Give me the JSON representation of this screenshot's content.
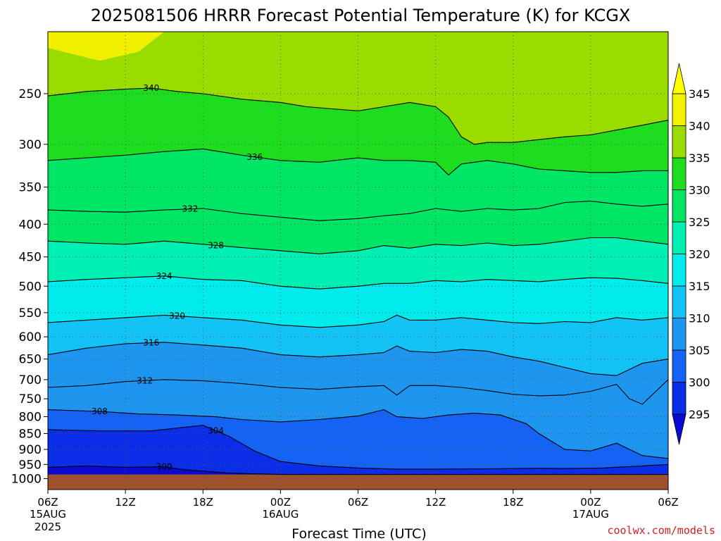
{
  "chart_data": {
    "type": "heatmap",
    "title": "2025081506 HRRR Forecast Potential Temperature (K) for KCGX",
    "xlabel": "Forecast Time (UTC)",
    "ylabel": "",
    "x_ticks": [
      {
        "hour": 0,
        "label": "06Z",
        "sub": "15AUG",
        "sub2": "2025"
      },
      {
        "hour": 6,
        "label": "12Z"
      },
      {
        "hour": 12,
        "label": "18Z"
      },
      {
        "hour": 18,
        "label": "00Z",
        "sub": "16AUG"
      },
      {
        "hour": 24,
        "label": "06Z"
      },
      {
        "hour": 30,
        "label": "12Z"
      },
      {
        "hour": 36,
        "label": "18Z"
      },
      {
        "hour": 42,
        "label": "00Z",
        "sub": "17AUG"
      },
      {
        "hour": 48,
        "label": "06Z"
      }
    ],
    "xlim": [
      0,
      48
    ],
    "y_ticks": [
      {
        "p": 250,
        "label": "250"
      },
      {
        "p": 300,
        "label": "300"
      },
      {
        "p": 350,
        "label": "350"
      },
      {
        "p": 400,
        "label": "400"
      },
      {
        "p": 450,
        "label": "450"
      },
      {
        "p": 500,
        "label": "500"
      },
      {
        "p": 550,
        "label": "550"
      },
      {
        "p": 600,
        "label": "600"
      },
      {
        "p": 650,
        "label": "650"
      },
      {
        "p": 700,
        "label": "700"
      },
      {
        "p": 750,
        "label": "750"
      },
      {
        "p": 800,
        "label": "800"
      },
      {
        "p": 850,
        "label": "850"
      },
      {
        "p": 900,
        "label": "900"
      },
      {
        "p": 950,
        "label": "950"
      },
      {
        "p": 1000,
        "label": "1000"
      }
    ],
    "ylim_hPa": [
      200,
      1040
    ],
    "y_scale": "log",
    "grid": true,
    "legend": {
      "placement": "right",
      "levels": [
        295,
        300,
        305,
        310,
        315,
        320,
        325,
        330,
        335,
        340,
        345
      ],
      "labels": [
        "295",
        "300",
        "305",
        "310",
        "315",
        "320",
        "325",
        "330",
        "335",
        "340",
        "345"
      ],
      "colors": [
        "#0a0ad2",
        "#0a2ee8",
        "#1463f5",
        "#1e96f0",
        "#14c3f5",
        "#00ebeb",
        "#00f0b4",
        "#00e664",
        "#1edc1e",
        "#9bdc00",
        "#f0f000",
        "#ffff00"
      ],
      "extend": "both"
    },
    "ground": {
      "p": 985,
      "color": "#a0522d"
    },
    "contours": [
      {
        "level": 300,
        "label": "300",
        "points": [
          [
            0,
            960
          ],
          [
            3,
            955
          ],
          [
            6,
            960
          ],
          [
            9,
            958
          ],
          [
            10.5,
            968
          ],
          [
            14,
            980
          ],
          [
            18,
            985
          ],
          [
            30,
            985
          ],
          [
            48,
            985
          ]
        ],
        "label_at": 9
      },
      {
        "level": 304,
        "label": "304",
        "points": [
          [
            0,
            838
          ],
          [
            4,
            842
          ],
          [
            8,
            842
          ],
          [
            12,
            825
          ],
          [
            14,
            858
          ],
          [
            16,
            905
          ],
          [
            18,
            940
          ],
          [
            21,
            955
          ],
          [
            24,
            962
          ],
          [
            27,
            966
          ],
          [
            30,
            966
          ],
          [
            34,
            965
          ],
          [
            38,
            963
          ],
          [
            40,
            964
          ],
          [
            43,
            962
          ],
          [
            46,
            955
          ],
          [
            48,
            950
          ]
        ],
        "label_at": 13
      },
      {
        "level": 308,
        "label": "308",
        "points": [
          [
            0,
            780
          ],
          [
            4,
            785
          ],
          [
            7,
            792
          ],
          [
            10,
            795
          ],
          [
            13,
            800
          ],
          [
            15,
            808
          ],
          [
            18,
            815
          ],
          [
            21,
            808
          ],
          [
            24,
            798
          ],
          [
            26,
            780
          ],
          [
            27,
            800
          ],
          [
            29,
            805
          ],
          [
            31,
            795
          ],
          [
            33,
            790
          ],
          [
            35,
            795
          ],
          [
            37,
            820
          ],
          [
            38,
            850
          ],
          [
            40,
            900
          ],
          [
            42,
            905
          ],
          [
            44,
            880
          ],
          [
            46,
            920
          ],
          [
            48,
            930
          ]
        ],
        "label_at": 4
      },
      {
        "level": 312,
        "label": "312",
        "points": [
          [
            0,
            720
          ],
          [
            3,
            715
          ],
          [
            6,
            705
          ],
          [
            9,
            700
          ],
          [
            12,
            703
          ],
          [
            15,
            710
          ],
          [
            18,
            720
          ],
          [
            21,
            725
          ],
          [
            24,
            718
          ],
          [
            26,
            715
          ],
          [
            27,
            740
          ],
          [
            28,
            715
          ],
          [
            30,
            715
          ],
          [
            32,
            720
          ],
          [
            34,
            728
          ],
          [
            36,
            738
          ],
          [
            38,
            742
          ],
          [
            40,
            740
          ],
          [
            42,
            730
          ],
          [
            44,
            712
          ],
          [
            45,
            750
          ],
          [
            46,
            765
          ],
          [
            48,
            700
          ]
        ],
        "label_at": 7.5
      },
      {
        "level": 316,
        "label": "316",
        "points": [
          [
            0,
            640
          ],
          [
            3,
            625
          ],
          [
            6,
            615
          ],
          [
            9,
            612
          ],
          [
            12,
            618
          ],
          [
            15,
            625
          ],
          [
            18,
            640
          ],
          [
            21,
            645
          ],
          [
            24,
            640
          ],
          [
            26,
            635
          ],
          [
            27,
            620
          ],
          [
            28,
            632
          ],
          [
            30,
            635
          ],
          [
            32,
            628
          ],
          [
            34,
            632
          ],
          [
            36,
            645
          ],
          [
            38,
            655
          ],
          [
            40,
            670
          ],
          [
            42,
            685
          ],
          [
            44,
            690
          ],
          [
            46,
            660
          ],
          [
            48,
            650
          ]
        ],
        "label_at": 8
      },
      {
        "level": 320,
        "label": "320",
        "points": [
          [
            0,
            570
          ],
          [
            3,
            565
          ],
          [
            6,
            560
          ],
          [
            9,
            555
          ],
          [
            12,
            560
          ],
          [
            15,
            565
          ],
          [
            18,
            575
          ],
          [
            21,
            580
          ],
          [
            24,
            575
          ],
          [
            26,
            568
          ],
          [
            27,
            555
          ],
          [
            28,
            565
          ],
          [
            30,
            565
          ],
          [
            32,
            560
          ],
          [
            34,
            565
          ],
          [
            36,
            570
          ],
          [
            38,
            572
          ],
          [
            40,
            568
          ],
          [
            42,
            570
          ],
          [
            44,
            560
          ],
          [
            46,
            565
          ],
          [
            48,
            560
          ]
        ],
        "label_at": 10
      },
      {
        "level": 324,
        "label": "324",
        "points": [
          [
            0,
            492
          ],
          [
            3,
            488
          ],
          [
            6,
            485
          ],
          [
            9,
            482
          ],
          [
            12,
            488
          ],
          [
            15,
            490
          ],
          [
            18,
            500
          ],
          [
            21,
            505
          ],
          [
            24,
            500
          ],
          [
            26,
            495
          ],
          [
            28,
            495
          ],
          [
            30,
            490
          ],
          [
            32,
            492
          ],
          [
            34,
            488
          ],
          [
            36,
            490
          ],
          [
            38,
            492
          ],
          [
            40,
            488
          ],
          [
            42,
            485
          ],
          [
            44,
            486
          ],
          [
            46,
            490
          ],
          [
            48,
            495
          ]
        ],
        "label_at": 9
      },
      {
        "level": 328,
        "label": "328",
        "points": [
          [
            0,
            425
          ],
          [
            3,
            428
          ],
          [
            6,
            430
          ],
          [
            9,
            425
          ],
          [
            12,
            430
          ],
          [
            15,
            435
          ],
          [
            18,
            440
          ],
          [
            21,
            445
          ],
          [
            24,
            440
          ],
          [
            26,
            432
          ],
          [
            28,
            436
          ],
          [
            30,
            430
          ],
          [
            32,
            432
          ],
          [
            34,
            428
          ],
          [
            36,
            432
          ],
          [
            38,
            430
          ],
          [
            40,
            425
          ],
          [
            42,
            420
          ],
          [
            44,
            420
          ],
          [
            46,
            425
          ],
          [
            48,
            430
          ]
        ],
        "label_at": 13
      },
      {
        "level": 332,
        "label": "332",
        "points": [
          [
            0,
            380
          ],
          [
            3,
            382
          ],
          [
            6,
            383
          ],
          [
            9,
            380
          ],
          [
            12,
            378
          ],
          [
            15,
            385
          ],
          [
            18,
            390
          ],
          [
            21,
            395
          ],
          [
            24,
            392
          ],
          [
            26,
            388
          ],
          [
            28,
            385
          ],
          [
            30,
            378
          ],
          [
            32,
            382
          ],
          [
            34,
            378
          ],
          [
            36,
            380
          ],
          [
            38,
            378
          ],
          [
            40,
            370
          ],
          [
            42,
            368
          ],
          [
            44,
            372
          ],
          [
            46,
            375
          ],
          [
            48,
            372
          ]
        ],
        "label_at": 11
      },
      {
        "level": 336,
        "label": "336",
        "points": [
          [
            0,
            318
          ],
          [
            3,
            315
          ],
          [
            6,
            312
          ],
          [
            9,
            308
          ],
          [
            12,
            305
          ],
          [
            15,
            312
          ],
          [
            18,
            318
          ],
          [
            21,
            320
          ],
          [
            24,
            315
          ],
          [
            26,
            318
          ],
          [
            28,
            318
          ],
          [
            30,
            320
          ],
          [
            31,
            335
          ],
          [
            32,
            322
          ],
          [
            34,
            318
          ],
          [
            36,
            322
          ],
          [
            38,
            328
          ],
          [
            40,
            330
          ],
          [
            42,
            332
          ],
          [
            44,
            332
          ],
          [
            46,
            330
          ],
          [
            48,
            330
          ]
        ],
        "label_at": 16
      },
      {
        "level": 340,
        "label": "340",
        "points": [
          [
            0,
            252
          ],
          [
            3,
            248
          ],
          [
            6,
            246
          ],
          [
            8,
            245
          ],
          [
            10,
            248
          ],
          [
            12,
            250
          ],
          [
            15,
            255
          ],
          [
            18,
            258
          ],
          [
            20,
            262
          ],
          [
            22,
            264
          ],
          [
            24,
            266
          ],
          [
            26,
            262
          ],
          [
            28,
            258
          ],
          [
            30,
            262
          ],
          [
            31,
            272
          ],
          [
            32,
            292
          ],
          [
            33,
            300
          ],
          [
            34,
            298
          ],
          [
            36,
            298
          ],
          [
            38,
            295
          ],
          [
            40,
            292
          ],
          [
            42,
            290
          ],
          [
            44,
            285
          ],
          [
            46,
            280
          ],
          [
            48,
            275
          ]
        ],
        "label_at": 8
      }
    ]
  },
  "watermark": "coolwx.com/models"
}
